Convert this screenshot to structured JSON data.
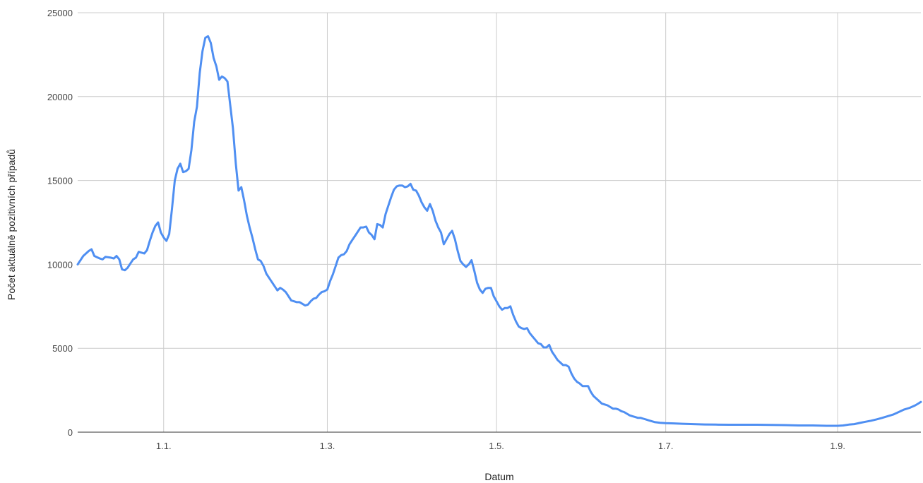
{
  "chart_data": {
    "type": "line",
    "title": "",
    "xlabel": "Datum",
    "ylabel": "Počet aktuálně pozitivních případů",
    "x_tick_labels": [
      "1.1.",
      "1.3.",
      "1.5.",
      "1.7.",
      "1.9."
    ],
    "x_tick_days": [
      31,
      90,
      151,
      212,
      274
    ],
    "x_range_days": [
      0,
      304
    ],
    "y_ticks": [
      0,
      5000,
      10000,
      15000,
      20000,
      25000
    ],
    "ylim": [
      0,
      25000
    ],
    "grid": true,
    "legend": "none",
    "line_color": "#4f8ff2",
    "series": [
      {
        "points": [
          [
            0,
            10000
          ],
          [
            2,
            10500
          ],
          [
            4,
            10800
          ],
          [
            5,
            10900
          ],
          [
            6,
            10500
          ],
          [
            8,
            10350
          ],
          [
            9,
            10300
          ],
          [
            10,
            10450
          ],
          [
            12,
            10400
          ],
          [
            13,
            10350
          ],
          [
            14,
            10500
          ],
          [
            15,
            10300
          ],
          [
            16,
            9700
          ],
          [
            17,
            9650
          ],
          [
            18,
            9800
          ],
          [
            19,
            10050
          ],
          [
            20,
            10300
          ],
          [
            21,
            10400
          ],
          [
            22,
            10750
          ],
          [
            24,
            10650
          ],
          [
            25,
            10850
          ],
          [
            26,
            11400
          ],
          [
            27,
            11900
          ],
          [
            28,
            12300
          ],
          [
            29,
            12500
          ],
          [
            30,
            11900
          ],
          [
            31,
            11600
          ],
          [
            32,
            11400
          ],
          [
            33,
            11800
          ],
          [
            34,
            13300
          ],
          [
            35,
            15000
          ],
          [
            36,
            15700
          ],
          [
            37,
            16000
          ],
          [
            38,
            15500
          ],
          [
            39,
            15550
          ],
          [
            40,
            15700
          ],
          [
            41,
            16800
          ],
          [
            42,
            18500
          ],
          [
            43,
            19400
          ],
          [
            44,
            21400
          ],
          [
            45,
            22700
          ],
          [
            46,
            23500
          ],
          [
            47,
            23600
          ],
          [
            48,
            23200
          ],
          [
            49,
            22300
          ],
          [
            50,
            21800
          ],
          [
            51,
            21000
          ],
          [
            52,
            21200
          ],
          [
            53,
            21100
          ],
          [
            54,
            20900
          ],
          [
            55,
            19500
          ],
          [
            56,
            18100
          ],
          [
            57,
            16000
          ],
          [
            58,
            14400
          ],
          [
            59,
            14600
          ],
          [
            60,
            13800
          ],
          [
            61,
            12900
          ],
          [
            62,
            12200
          ],
          [
            63,
            11600
          ],
          [
            64,
            10900
          ],
          [
            65,
            10300
          ],
          [
            66,
            10200
          ],
          [
            67,
            9900
          ],
          [
            68,
            9450
          ],
          [
            69,
            9200
          ],
          [
            70,
            8950
          ],
          [
            71,
            8700
          ],
          [
            72,
            8450
          ],
          [
            73,
            8600
          ],
          [
            74,
            8500
          ],
          [
            75,
            8350
          ],
          [
            76,
            8100
          ],
          [
            77,
            7850
          ],
          [
            78,
            7800
          ],
          [
            79,
            7750
          ],
          [
            80,
            7750
          ],
          [
            81,
            7650
          ],
          [
            82,
            7550
          ],
          [
            83,
            7600
          ],
          [
            84,
            7800
          ],
          [
            85,
            7950
          ],
          [
            86,
            8000
          ],
          [
            87,
            8200
          ],
          [
            88,
            8350
          ],
          [
            89,
            8400
          ],
          [
            90,
            8500
          ],
          [
            91,
            9000
          ],
          [
            92,
            9400
          ],
          [
            93,
            9900
          ],
          [
            94,
            10400
          ],
          [
            95,
            10550
          ],
          [
            96,
            10600
          ],
          [
            97,
            10800
          ],
          [
            98,
            11200
          ],
          [
            99,
            11450
          ],
          [
            100,
            11700
          ],
          [
            101,
            11950
          ],
          [
            102,
            12200
          ],
          [
            103,
            12200
          ],
          [
            104,
            12250
          ],
          [
            105,
            11900
          ],
          [
            106,
            11750
          ],
          [
            107,
            11500
          ],
          [
            108,
            12400
          ],
          [
            109,
            12350
          ],
          [
            110,
            12200
          ],
          [
            111,
            13000
          ],
          [
            112,
            13500
          ],
          [
            113,
            14000
          ],
          [
            114,
            14450
          ],
          [
            115,
            14650
          ],
          [
            116,
            14700
          ],
          [
            117,
            14700
          ],
          [
            118,
            14600
          ],
          [
            119,
            14650
          ],
          [
            120,
            14800
          ],
          [
            121,
            14450
          ],
          [
            122,
            14400
          ],
          [
            123,
            14100
          ],
          [
            124,
            13700
          ],
          [
            125,
            13400
          ],
          [
            126,
            13200
          ],
          [
            127,
            13600
          ],
          [
            128,
            13200
          ],
          [
            129,
            12600
          ],
          [
            130,
            12200
          ],
          [
            131,
            11900
          ],
          [
            132,
            11200
          ],
          [
            133,
            11500
          ],
          [
            134,
            11800
          ],
          [
            135,
            12000
          ],
          [
            136,
            11500
          ],
          [
            137,
            10800
          ],
          [
            138,
            10200
          ],
          [
            139,
            10000
          ],
          [
            140,
            9850
          ],
          [
            141,
            10000
          ],
          [
            142,
            10250
          ],
          [
            143,
            9600
          ],
          [
            144,
            8900
          ],
          [
            145,
            8500
          ],
          [
            146,
            8300
          ],
          [
            147,
            8550
          ],
          [
            148,
            8600
          ],
          [
            149,
            8600
          ],
          [
            150,
            8100
          ],
          [
            151,
            7800
          ],
          [
            152,
            7500
          ],
          [
            153,
            7300
          ],
          [
            154,
            7400
          ],
          [
            155,
            7400
          ],
          [
            156,
            7500
          ],
          [
            157,
            7000
          ],
          [
            158,
            6600
          ],
          [
            159,
            6300
          ],
          [
            160,
            6200
          ],
          [
            161,
            6150
          ],
          [
            162,
            6200
          ],
          [
            163,
            5900
          ],
          [
            164,
            5700
          ],
          [
            165,
            5500
          ],
          [
            166,
            5300
          ],
          [
            167,
            5250
          ],
          [
            168,
            5050
          ],
          [
            169,
            5050
          ],
          [
            170,
            5200
          ],
          [
            171,
            4800
          ],
          [
            172,
            4550
          ],
          [
            173,
            4300
          ],
          [
            174,
            4150
          ],
          [
            175,
            4000
          ],
          [
            176,
            4000
          ],
          [
            177,
            3900
          ],
          [
            178,
            3500
          ],
          [
            179,
            3200
          ],
          [
            180,
            3000
          ],
          [
            181,
            2900
          ],
          [
            182,
            2750
          ],
          [
            183,
            2750
          ],
          [
            184,
            2750
          ],
          [
            185,
            2400
          ],
          [
            186,
            2150
          ],
          [
            187,
            2000
          ],
          [
            188,
            1850
          ],
          [
            189,
            1700
          ],
          [
            190,
            1650
          ],
          [
            191,
            1600
          ],
          [
            192,
            1500
          ],
          [
            193,
            1400
          ],
          [
            194,
            1400
          ],
          [
            195,
            1350
          ],
          [
            196,
            1250
          ],
          [
            197,
            1200
          ],
          [
            198,
            1100
          ],
          [
            199,
            1000
          ],
          [
            200,
            950
          ],
          [
            201,
            900
          ],
          [
            202,
            850
          ],
          [
            203,
            850
          ],
          [
            204,
            800
          ],
          [
            205,
            750
          ],
          [
            206,
            700
          ],
          [
            207,
            650
          ],
          [
            208,
            600
          ],
          [
            209,
            580
          ],
          [
            210,
            560
          ],
          [
            212,
            540
          ],
          [
            215,
            520
          ],
          [
            218,
            500
          ],
          [
            222,
            480
          ],
          [
            226,
            460
          ],
          [
            230,
            450
          ],
          [
            235,
            440
          ],
          [
            240,
            440
          ],
          [
            245,
            440
          ],
          [
            250,
            430
          ],
          [
            255,
            420
          ],
          [
            260,
            400
          ],
          [
            265,
            400
          ],
          [
            270,
            380
          ],
          [
            274,
            380
          ],
          [
            276,
            400
          ],
          [
            278,
            450
          ],
          [
            280,
            480
          ],
          [
            282,
            550
          ],
          [
            284,
            620
          ],
          [
            286,
            680
          ],
          [
            288,
            760
          ],
          [
            290,
            850
          ],
          [
            292,
            950
          ],
          [
            294,
            1050
          ],
          [
            296,
            1200
          ],
          [
            298,
            1350
          ],
          [
            300,
            1450
          ],
          [
            302,
            1600
          ],
          [
            303,
            1700
          ],
          [
            304,
            1800
          ]
        ]
      }
    ]
  }
}
